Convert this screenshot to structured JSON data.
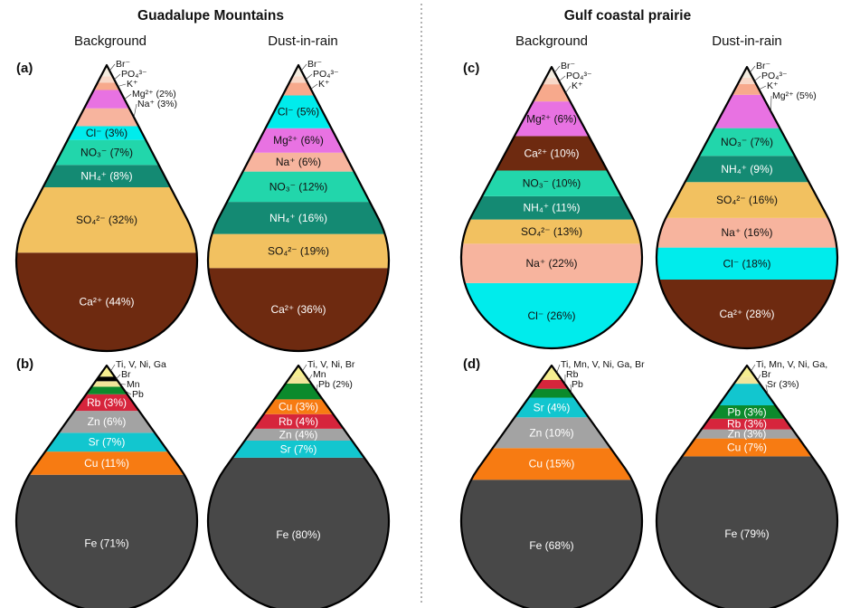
{
  "header": {
    "site_left": "Guadalupe Mountains",
    "site_right": "Gulf coastal prairie",
    "sub_background": "Background",
    "sub_dust": "Dust-in-rain"
  },
  "colors": {
    "Ca": "#6e2a10",
    "SO4": "#f2c160",
    "NH4": "#148a73",
    "NO3": "#22d6ab",
    "Cl": "#00ecec",
    "Na": "#f7b49e",
    "Mg": "#e872e2",
    "K": "#f7a98c",
    "PO4": "#f8d8c8",
    "Br": "#f4ecdf",
    "Fe": "#484848",
    "Cu": "#f77b12",
    "Sr": "#12c6cf",
    "Zn": "#a3a3a3",
    "Rb": "#d6253c",
    "Pb": "#0b8a2c",
    "Mn": "#f2e59a",
    "Trace": "#f6ee90",
    "BlackBand": "#000000"
  },
  "chart_data": [
    {
      "id": "a",
      "panel_label": "(a)",
      "type": "pie",
      "site": "Guadalupe Mountains",
      "sample": "Background",
      "slices": [
        {
          "label": "Ca²⁺ (44%)",
          "value": 44,
          "color": "Ca",
          "text_color": "#ffffff"
        },
        {
          "label": "SO₄²⁻ (32%)",
          "value": 32,
          "color": "SO4",
          "text_color": "#111111"
        },
        {
          "label": "NH₄⁺ (8%)",
          "value": 8,
          "color": "NH4",
          "text_color": "#ffffff"
        },
        {
          "label": "NO₃⁻ (7%)",
          "value": 7,
          "color": "NO3",
          "text_color": "#111111"
        },
        {
          "label": "Cl⁻ (3%)",
          "value": 3,
          "color": "Cl",
          "text_color": "#111111"
        },
        {
          "label": "Na⁺ (3%)",
          "value": 3,
          "color": "Na",
          "text_color": "#111111",
          "outside": true
        },
        {
          "label": "Mg²⁺ (2%)",
          "value": 2,
          "color": "Mg",
          "text_color": "#111111",
          "outside": true
        },
        {
          "label": "K⁺",
          "value": 0.5,
          "color": "K",
          "text_color": "#111111",
          "outside": true
        },
        {
          "label": "PO₄³⁻",
          "value": 0.3,
          "color": "PO4",
          "text_color": "#111111",
          "outside": true
        },
        {
          "label": "Br⁻",
          "value": 0.2,
          "color": "Br",
          "text_color": "#111111",
          "outside": true
        }
      ]
    },
    {
      "id": "a2",
      "panel_label": "",
      "type": "pie",
      "site": "Guadalupe Mountains",
      "sample": "Dust-in-rain",
      "slices": [
        {
          "label": "Ca²⁺ (36%)",
          "value": 36,
          "color": "Ca",
          "text_color": "#ffffff"
        },
        {
          "label": "SO₄²⁻ (19%)",
          "value": 19,
          "color": "SO4",
          "text_color": "#111111"
        },
        {
          "label": "NH₄⁺ (16%)",
          "value": 16,
          "color": "NH4",
          "text_color": "#ffffff"
        },
        {
          "label": "NO₃⁻ (12%)",
          "value": 12,
          "color": "NO3",
          "text_color": "#111111"
        },
        {
          "label": "Na⁺ (6%)",
          "value": 6,
          "color": "Na",
          "text_color": "#111111"
        },
        {
          "label": "Mg²⁺ (6%)",
          "value": 6,
          "color": "Mg",
          "text_color": "#111111"
        },
        {
          "label": "Cl⁻ (5%)",
          "value": 5,
          "color": "Cl",
          "text_color": "#111111"
        },
        {
          "label": "K⁺",
          "value": 1,
          "color": "K",
          "text_color": "#111111",
          "outside": true
        },
        {
          "label": "PO₄³⁻",
          "value": 0.3,
          "color": "PO4",
          "text_color": "#111111",
          "outside": true
        },
        {
          "label": "Br⁻",
          "value": 0.2,
          "color": "Br",
          "text_color": "#111111",
          "outside": true
        }
      ]
    },
    {
      "id": "c",
      "panel_label": "(c)",
      "type": "pie",
      "site": "Gulf coastal prairie",
      "sample": "Background",
      "slices": [
        {
          "label": "Cl⁻ (26%)",
          "value": 26,
          "color": "Cl",
          "text_color": "#111111"
        },
        {
          "label": "Na⁺ (22%)",
          "value": 22,
          "color": "Na",
          "text_color": "#111111"
        },
        {
          "label": "SO₄²⁻ (13%)",
          "value": 13,
          "color": "SO4",
          "text_color": "#111111"
        },
        {
          "label": "NH₄⁺ (11%)",
          "value": 11,
          "color": "NH4",
          "text_color": "#ffffff"
        },
        {
          "label": "NO₃⁻ (10%)",
          "value": 10,
          "color": "NO3",
          "text_color": "#111111"
        },
        {
          "label": "Ca²⁺ (10%)",
          "value": 10,
          "color": "Ca",
          "text_color": "#ffffff"
        },
        {
          "label": "Mg²⁺ (6%)",
          "value": 6,
          "color": "Mg",
          "text_color": "#111111"
        },
        {
          "label": "K⁺",
          "value": 1.5,
          "color": "K",
          "text_color": "#111111",
          "outside": true
        },
        {
          "label": "PO₄³⁻",
          "value": 0.3,
          "color": "PO4",
          "text_color": "#111111",
          "outside": true
        },
        {
          "label": "Br⁻",
          "value": 0.2,
          "color": "Br",
          "text_color": "#111111",
          "outside": true
        }
      ]
    },
    {
      "id": "c2",
      "panel_label": "",
      "type": "pie",
      "site": "Gulf coastal prairie",
      "sample": "Dust-in-rain",
      "slices": [
        {
          "label": "Ca²⁺ (28%)",
          "value": 28,
          "color": "Ca",
          "text_color": "#ffffff"
        },
        {
          "label": "Cl⁻ (18%)",
          "value": 18,
          "color": "Cl",
          "text_color": "#111111"
        },
        {
          "label": "Na⁺ (16%)",
          "value": 16,
          "color": "Na",
          "text_color": "#111111"
        },
        {
          "label": "SO₄²⁻ (16%)",
          "value": 16,
          "color": "SO4",
          "text_color": "#111111"
        },
        {
          "label": "NH₄⁺ (9%)",
          "value": 9,
          "color": "NH4",
          "text_color": "#ffffff"
        },
        {
          "label": "NO₃⁻ (7%)",
          "value": 7,
          "color": "NO3",
          "text_color": "#111111"
        },
        {
          "label": "Mg²⁺ (5%)",
          "value": 5,
          "color": "Mg",
          "text_color": "#111111",
          "outside": true
        },
        {
          "label": "K⁺",
          "value": 0.8,
          "color": "K",
          "text_color": "#111111",
          "outside": true
        },
        {
          "label": "PO₄³⁻",
          "value": 0.3,
          "color": "PO4",
          "text_color": "#111111",
          "outside": true
        },
        {
          "label": "Br⁻",
          "value": 0.2,
          "color": "Br",
          "text_color": "#111111",
          "outside": true
        }
      ]
    },
    {
      "id": "b",
      "panel_label": "(b)",
      "type": "pie",
      "site": "Guadalupe Mountains",
      "sample": "Background",
      "slices": [
        {
          "label": "Fe (71%)",
          "value": 71,
          "color": "Fe",
          "text_color": "#ffffff"
        },
        {
          "label": "Cu (11%)",
          "value": 11,
          "color": "Cu",
          "text_color": "#ffffff"
        },
        {
          "label": "Sr (7%)",
          "value": 7,
          "color": "Sr",
          "text_color": "#ffffff"
        },
        {
          "label": "Zn (6%)",
          "value": 6,
          "color": "Zn",
          "text_color": "#ffffff"
        },
        {
          "label": "Rb (3%)",
          "value": 3,
          "color": "Rb",
          "text_color": "#ffffff"
        },
        {
          "label": "Pb",
          "value": 0.9,
          "color": "Pb",
          "text_color": "#111111",
          "outside": true
        },
        {
          "label": "Mn",
          "value": 0.5,
          "color": "Mn",
          "text_color": "#111111",
          "outside": true
        },
        {
          "label": "Br",
          "value": 0.3,
          "color": "BlackBand",
          "text_color": "#111111",
          "outside": true
        },
        {
          "label": "Ti, V, Ni, Ga",
          "value": 0.3,
          "color": "Trace",
          "text_color": "#111111",
          "outside": true
        }
      ]
    },
    {
      "id": "b2",
      "panel_label": "",
      "type": "pie",
      "site": "Guadalupe Mountains",
      "sample": "Dust-in-rain",
      "slices": [
        {
          "label": "Fe (80%)",
          "value": 80,
          "color": "Fe",
          "text_color": "#ffffff"
        },
        {
          "label": "Sr (7%)",
          "value": 7,
          "color": "Sr",
          "text_color": "#ffffff"
        },
        {
          "label": "Zn (4%)",
          "value": 4,
          "color": "Zn",
          "text_color": "#ffffff"
        },
        {
          "label": "Rb (4%)",
          "value": 4,
          "color": "Rb",
          "text_color": "#ffffff"
        },
        {
          "label": "Cu (3%)",
          "value": 3,
          "color": "Cu",
          "text_color": "#ffffff"
        },
        {
          "label": "Pb (2%)",
          "value": 2,
          "color": "Pb",
          "text_color": "#111111",
          "outside": true
        },
        {
          "label": "Mn",
          "value": 0.5,
          "color": "Mn",
          "text_color": "#111111",
          "outside": true
        },
        {
          "label": "Ti, V, Ni, Br",
          "value": 0.3,
          "color": "Trace",
          "text_color": "#111111",
          "outside": true
        }
      ]
    },
    {
      "id": "d",
      "panel_label": "(d)",
      "type": "pie",
      "site": "Gulf coastal prairie",
      "sample": "Background",
      "slices": [
        {
          "label": "Fe (68%)",
          "value": 68,
          "color": "Fe",
          "text_color": "#ffffff"
        },
        {
          "label": "Cu (15%)",
          "value": 15,
          "color": "Cu",
          "text_color": "#ffffff"
        },
        {
          "label": "Zn (10%)",
          "value": 10,
          "color": "Zn",
          "text_color": "#ffffff"
        },
        {
          "label": "Sr (4%)",
          "value": 4,
          "color": "Sr",
          "text_color": "#ffffff"
        },
        {
          "label": "Pb",
          "value": 1.2,
          "color": "Pb",
          "text_color": "#111111",
          "outside": true
        },
        {
          "label": "Rb",
          "value": 0.8,
          "color": "Rb",
          "text_color": "#111111",
          "outside": true
        },
        {
          "label": "Ti, Mn, V, Ni, Ga, Br",
          "value": 0.5,
          "color": "Trace",
          "text_color": "#111111",
          "outside": true
        }
      ]
    },
    {
      "id": "d2",
      "panel_label": "",
      "type": "pie",
      "site": "Gulf coastal prairie",
      "sample": "Dust-in-rain",
      "slices": [
        {
          "label": "Fe (79%)",
          "value": 79,
          "color": "Fe",
          "text_color": "#ffffff"
        },
        {
          "label": "Cu (7%)",
          "value": 7,
          "color": "Cu",
          "text_color": "#ffffff"
        },
        {
          "label": "Zn (3%)",
          "value": 3,
          "color": "Zn",
          "text_color": "#ffffff"
        },
        {
          "label": "Rb (3%)",
          "value": 3,
          "color": "Rb",
          "text_color": "#ffffff"
        },
        {
          "label": "Pb (3%)",
          "value": 3,
          "color": "Pb",
          "text_color": "#ffffff"
        },
        {
          "label": "Sr (3%)",
          "value": 3,
          "color": "Sr",
          "text_color": "#111111",
          "outside": true
        },
        {
          "label": "Br",
          "value": 0.5,
          "color": "Mn",
          "text_color": "#111111",
          "outside": true
        },
        {
          "label": "Ti, Mn, V, Ni, Ga,",
          "value": 0.3,
          "color": "Trace",
          "text_color": "#111111",
          "outside": true
        }
      ]
    }
  ]
}
